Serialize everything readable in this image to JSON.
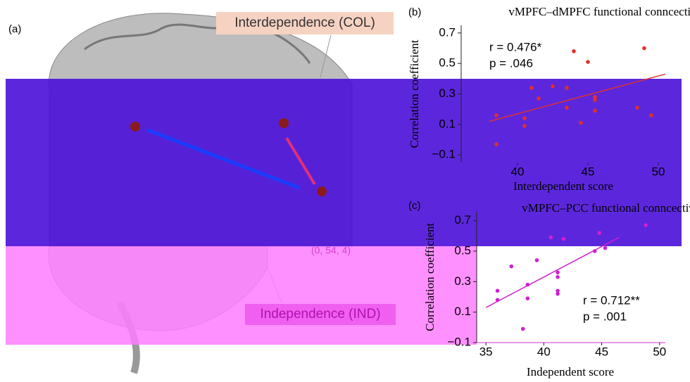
{
  "panel_a": {
    "label": "(a)",
    "box_top": "Interdependence (COL)",
    "box_bottom": "Independence (IND)",
    "coords": "(0, 54, 4)"
  },
  "chart_data": [
    {
      "type": "scatter",
      "panel": "(b)",
      "title": "vMPFC–dMPFC functional conncectivity",
      "x_label": "Interdependent score",
      "y_label": "Correlation coefficient",
      "stat_r": "r = 0.476*",
      "stat_p": "p = .046",
      "color": "#e0302a",
      "xlim": [
        36,
        50.5
      ],
      "ylim": [
        -0.15,
        0.75
      ],
      "xticks": [
        40,
        45,
        50
      ],
      "yticks": [
        0.7,
        0.5,
        0.3,
        0.1,
        {
          "value": -0.1,
          "label": "−0.1"
        }
      ],
      "x": [
        44,
        45,
        49,
        41,
        42.5,
        43.5,
        41.5,
        45.5,
        45.5,
        43.5,
        48.5,
        45.5,
        49.5,
        38.5,
        40.5,
        40.5,
        44.5,
        38.5
      ],
      "values": [
        0.58,
        0.51,
        0.6,
        0.34,
        0.35,
        0.34,
        0.27,
        0.28,
        0.26,
        0.21,
        0.21,
        0.19,
        0.16,
        0.16,
        0.14,
        0.09,
        0.11,
        -0.03
      ],
      "fit": {
        "x": [
          38,
          50.5
        ],
        "y": [
          0.12,
          0.43
        ]
      }
    },
    {
      "type": "scatter",
      "panel": "(c)",
      "title": "vMPFC–PCC functional conncectivity",
      "x_label": "Independent score",
      "y_label": "Correlation coefficient",
      "stat_r": "r = 0.712**",
      "stat_p": "p = .001",
      "color": "#d020d0",
      "xlim": [
        34.2,
        50.5
      ],
      "ylim": [
        -0.1,
        0.76
      ],
      "xticks": [
        35,
        40,
        45,
        50
      ],
      "yticks": [
        0.7,
        0.5,
        0.3,
        0.1,
        {
          "value": -0.1,
          "label": "−0.1"
        }
      ],
      "x": [
        40.6,
        41.7,
        44.8,
        48.8,
        37.2,
        39.4,
        44.4,
        45.3,
        41.2,
        41.2,
        38.6,
        41.2,
        41.2,
        36,
        36,
        38.6,
        38.2
      ],
      "values": [
        0.59,
        0.58,
        0.62,
        0.67,
        0.4,
        0.44,
        0.5,
        0.52,
        0.36,
        0.33,
        0.28,
        0.24,
        0.22,
        0.24,
        0.18,
        0.19,
        -0.01
      ],
      "fit": {
        "x": [
          35,
          46.5
        ],
        "y": [
          0.13,
          0.59
        ]
      }
    }
  ]
}
